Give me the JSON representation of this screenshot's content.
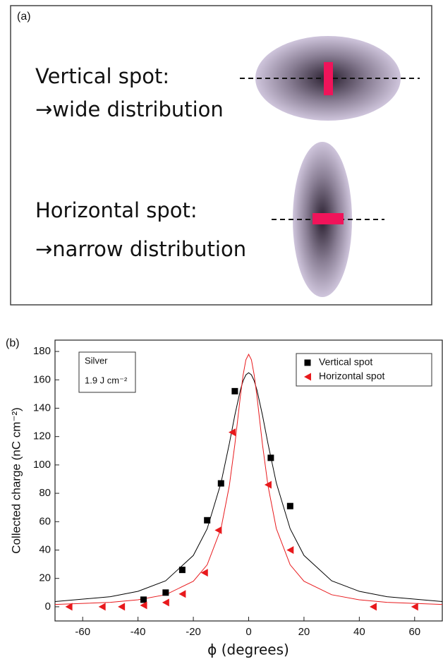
{
  "panel_a": {
    "label": "(a)",
    "vertical_title": "Vertical spot:",
    "vertical_desc": "→wide distribution",
    "horizontal_title": "Horizontal spot:",
    "horizontal_desc": "→narrow distribution"
  },
  "chart_data": {
    "type": "scatter",
    "panel_label": "(b)",
    "x_label": "ϕ (degrees)",
    "y_label": "Collected charge (nC cm⁻²)",
    "annotation": [
      "Silver",
      "1.9 J cm⁻²"
    ],
    "xlim": [
      -70,
      70
    ],
    "ylim": [
      -10,
      188
    ],
    "xticks": [
      -60,
      -40,
      -20,
      0,
      20,
      40,
      60
    ],
    "yticks": [
      0,
      20,
      40,
      60,
      80,
      100,
      120,
      140,
      160,
      180
    ],
    "legend": "upper right",
    "series": [
      {
        "name": "Vertical spot",
        "color": "#000000",
        "marker": "square",
        "x": [
          -38,
          -30,
          -24,
          -15,
          -10,
          -5,
          8,
          15
        ],
        "values": [
          5,
          10,
          26,
          61,
          87,
          152,
          105,
          71
        ]
      },
      {
        "name": "Horizontal spot",
        "color": "#e8191c",
        "marker": "triangle-left",
        "x": [
          -65,
          -53,
          -46,
          -38,
          -30,
          -24,
          -16,
          -11,
          -6,
          7,
          15,
          45,
          60
        ],
        "values": [
          0,
          0,
          0,
          1,
          3,
          9,
          24,
          54,
          123,
          86,
          40,
          0,
          0
        ]
      }
    ],
    "fits": [
      {
        "color": "#000000",
        "x": [
          -70,
          -50,
          -40,
          -30,
          -20,
          -15,
          -10,
          -7,
          -5,
          -3,
          -2,
          -1,
          0,
          1,
          2,
          3,
          5,
          7,
          10,
          15,
          20,
          30,
          40,
          50,
          70
        ],
        "values": [
          3.7,
          7.1,
          10.9,
          18.3,
          36.2,
          55.0,
          87.3,
          114.9,
          135.0,
          152.8,
          159.3,
          163.5,
          165,
          163.5,
          159.3,
          152.8,
          135.0,
          114.9,
          87.3,
          55.0,
          36.2,
          18.3,
          10.9,
          7.1,
          3.7
        ]
      },
      {
        "color": "#e8191c",
        "x": [
          -70,
          -50,
          -40,
          -30,
          -20,
          -15,
          -10,
          -7,
          -5,
          -3,
          -2,
          -1,
          0,
          1,
          2,
          3,
          5,
          7,
          10,
          15,
          20,
          30,
          40,
          50,
          70
        ],
        "values": [
          1.6,
          3.1,
          4.9,
          8.5,
          18.0,
          29.6,
          55.1,
          85.2,
          114.3,
          148.3,
          163.4,
          174.1,
          178,
          174.1,
          163.4,
          148.3,
          114.3,
          85.2,
          55.1,
          29.6,
          18.0,
          8.5,
          4.9,
          3.1,
          1.6
        ]
      }
    ]
  }
}
